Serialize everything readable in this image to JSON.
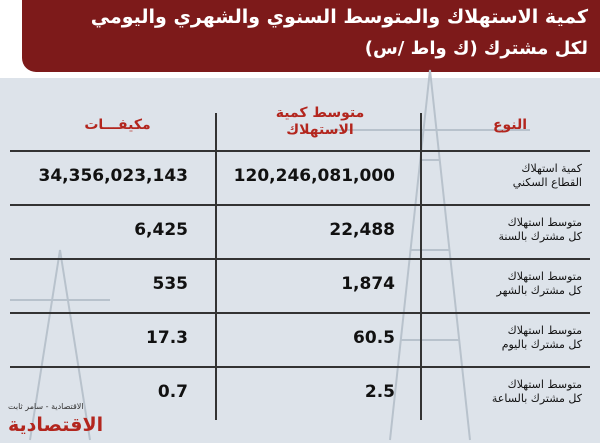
{
  "header": {
    "title": [
      "كمية الاستهلاك والمتوسط السنوي والشهري واليومي",
      "لكل مشترك (ك واط /س)"
    ]
  },
  "table": {
    "columns": [
      [
        "النوع"
      ],
      [
        "متوسط كمية",
        "الاستهلاك"
      ],
      [
        "مكيفـــات"
      ]
    ],
    "rows": [
      [
        [
          "كمية استهلاك",
          "القطاع السكني"
        ],
        "120,246,081,000",
        "34,356,023,143"
      ],
      [
        [
          "متوسط استهلاك",
          "كل مشترك بالسنة"
        ],
        "22,488",
        "6,425"
      ],
      [
        [
          "متوسط استهلاك",
          "كل مشترك بالشهر"
        ],
        "1,874",
        "535"
      ],
      [
        [
          "متوسط استهلاك",
          "كل مشترك باليوم"
        ],
        "60.5",
        "17.3"
      ],
      [
        [
          "متوسط استهلاك",
          "كل مشترك بالساعة"
        ],
        "2.5",
        "0.7"
      ]
    ]
  },
  "footer": {
    "credit": "الاقتصادية - سامر ثابت",
    "logo": "الاقتصادية"
  }
}
